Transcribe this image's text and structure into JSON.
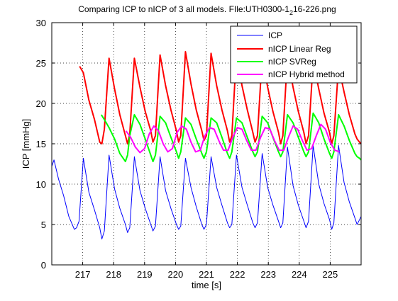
{
  "window": {
    "title_main": "Comparing ICP to nICP of 3 all models. FIle:UTH0300-1",
    "title_sub": "2",
    "title_tail": "16-226.png"
  },
  "chart_data": {
    "type": "line",
    "title": "Comparing ICP to nICP of 3 all models. FIle:UTH0300-1_2 16-226.png",
    "xlabel": "time [s]",
    "ylabel": "ICP [mmHg]",
    "xlim": [
      216.0,
      226.0
    ],
    "ylim": [
      0,
      30
    ],
    "xticks": [
      217,
      218,
      219,
      220,
      221,
      222,
      223,
      224,
      225
    ],
    "yticks": [
      0,
      5,
      10,
      15,
      20,
      25,
      30
    ],
    "grid": true,
    "legend_position": "top-right",
    "beat_period_s": 0.825,
    "series": [
      {
        "name": "ICP",
        "color": "#0000ff",
        "x": [
          216.0,
          216.07,
          216.22,
          216.38,
          216.55,
          216.73,
          216.8,
          216.88,
          217.02,
          217.2,
          217.38,
          217.55,
          217.62,
          217.7,
          217.85,
          218.03,
          218.2,
          218.38,
          218.45,
          218.52,
          218.67,
          218.85,
          219.02,
          219.2,
          219.27,
          219.35,
          219.5,
          219.68,
          219.85,
          220.03,
          220.1,
          220.17,
          220.32,
          220.5,
          220.67,
          220.85,
          220.92,
          221.0,
          221.15,
          221.33,
          221.5,
          221.68,
          221.75,
          221.82,
          221.97,
          222.15,
          222.32,
          222.5,
          222.57,
          222.65,
          222.8,
          222.98,
          223.15,
          223.33,
          223.4,
          223.47,
          223.62,
          223.8,
          223.97,
          224.15,
          224.22,
          224.3,
          224.45,
          224.63,
          224.8,
          224.98,
          225.05,
          225.12,
          225.27,
          225.45,
          225.62,
          225.8,
          225.87,
          225.95,
          226.0
        ],
        "y": [
          12.2,
          13.0,
          10.6,
          8.6,
          6.0,
          4.4,
          4.6,
          5.4,
          13.2,
          9.0,
          6.8,
          4.6,
          3.2,
          4.2,
          13.6,
          9.4,
          7.0,
          5.0,
          4.0,
          4.6,
          13.4,
          9.2,
          7.0,
          5.0,
          4.2,
          4.8,
          13.4,
          9.2,
          7.0,
          5.0,
          4.4,
          4.8,
          13.2,
          9.6,
          7.2,
          5.0,
          4.4,
          5.0,
          13.4,
          9.6,
          7.4,
          5.2,
          4.6,
          5.0,
          13.6,
          9.6,
          7.4,
          5.2,
          4.6,
          5.2,
          13.8,
          9.6,
          7.4,
          5.4,
          4.6,
          5.2,
          14.6,
          9.8,
          7.4,
          5.4,
          4.6,
          5.4,
          14.8,
          10.0,
          7.6,
          5.6,
          4.4,
          5.2,
          14.8,
          10.2,
          7.8,
          5.8,
          5.0,
          5.6,
          6.0
        ]
      },
      {
        "name": "nICP Linear Reg",
        "color": "#ff0000",
        "x": [
          216.9,
          217.02,
          217.2,
          217.38,
          217.55,
          217.62,
          217.7,
          217.85,
          218.03,
          218.2,
          218.38,
          218.45,
          218.52,
          218.67,
          218.85,
          219.02,
          219.2,
          219.27,
          219.35,
          219.5,
          219.68,
          219.85,
          220.03,
          220.1,
          220.17,
          220.32,
          220.5,
          220.67,
          220.85,
          220.92,
          221.0,
          221.15,
          221.33,
          221.5,
          221.68,
          221.75,
          221.82,
          221.97,
          222.15,
          222.32,
          222.5,
          222.57,
          222.65,
          222.8,
          222.98,
          223.15,
          223.33,
          223.4,
          223.47,
          223.62,
          223.8,
          223.97,
          224.15,
          224.22,
          224.3,
          224.45,
          224.63,
          224.8,
          224.98,
          225.05,
          225.12,
          225.27,
          225.45,
          225.62,
          225.8,
          225.87,
          225.95,
          226.0
        ],
        "y": [
          24.6,
          23.8,
          20.4,
          18.0,
          15.2,
          15.0,
          16.8,
          25.6,
          21.8,
          18.6,
          16.0,
          15.0,
          16.2,
          25.6,
          22.0,
          19.0,
          16.6,
          15.2,
          16.0,
          26.0,
          22.2,
          19.2,
          16.6,
          15.2,
          16.0,
          26.4,
          22.4,
          19.2,
          16.6,
          15.4,
          16.0,
          26.2,
          22.2,
          19.2,
          16.6,
          15.2,
          16.0,
          26.2,
          22.2,
          19.2,
          16.4,
          15.2,
          16.0,
          25.8,
          22.0,
          19.0,
          16.4,
          15.0,
          16.0,
          25.8,
          22.0,
          19.0,
          16.4,
          15.0,
          16.0,
          25.2,
          21.8,
          18.8,
          16.4,
          15.0,
          16.0,
          24.6,
          21.4,
          18.6,
          16.2,
          15.6,
          15.2,
          15.0
        ]
      },
      {
        "name": "nICP SVReg",
        "color": "#00ff00",
        "x": [
          217.6,
          217.7,
          217.85,
          218.03,
          218.2,
          218.38,
          218.45,
          218.52,
          218.67,
          218.85,
          219.02,
          219.2,
          219.27,
          219.35,
          219.5,
          219.68,
          219.85,
          220.03,
          220.1,
          220.17,
          220.32,
          220.5,
          220.67,
          220.85,
          220.92,
          221.0,
          221.15,
          221.33,
          221.5,
          221.68,
          221.75,
          221.82,
          221.97,
          222.15,
          222.32,
          222.5,
          222.57,
          222.65,
          222.8,
          222.98,
          223.15,
          223.33,
          223.4,
          223.47,
          223.62,
          223.8,
          223.97,
          224.15,
          224.22,
          224.3,
          224.45,
          224.63,
          224.8,
          224.98,
          225.05,
          225.12,
          225.27,
          225.45,
          225.62,
          225.8,
          225.87,
          225.95,
          226.0
        ],
        "y": [
          18.6,
          18.0,
          17.0,
          15.6,
          13.8,
          12.8,
          13.6,
          16.0,
          18.6,
          17.4,
          15.6,
          13.6,
          12.8,
          13.6,
          18.4,
          17.6,
          15.8,
          14.0,
          13.2,
          14.0,
          18.2,
          17.4,
          15.6,
          13.8,
          13.2,
          14.0,
          18.2,
          17.6,
          15.8,
          13.8,
          13.2,
          14.0,
          18.2,
          17.6,
          15.8,
          14.0,
          13.4,
          14.0,
          18.4,
          17.6,
          15.8,
          14.0,
          13.4,
          14.0,
          18.6,
          17.6,
          15.8,
          14.0,
          13.4,
          14.0,
          18.8,
          17.6,
          15.6,
          13.8,
          13.2,
          14.0,
          18.6,
          17.2,
          15.4,
          13.8,
          13.4,
          13.2,
          13.0
        ]
      },
      {
        "name": "nICP Hybrid method",
        "color": "#ff00ff",
        "x": [
          218.4,
          218.55,
          218.7,
          218.85,
          219.0,
          219.15,
          219.3,
          219.45,
          219.6,
          219.75,
          219.9,
          220.05,
          220.2,
          220.35,
          220.5,
          220.65,
          220.8,
          220.95,
          221.1,
          221.25,
          221.4,
          221.55,
          221.7,
          221.85,
          222.0,
          222.15,
          222.3,
          222.45,
          222.6,
          222.75,
          222.9,
          223.05,
          223.2,
          223.35,
          223.5,
          223.65,
          223.8,
          223.95,
          224.1,
          224.25,
          224.4,
          224.55,
          224.7,
          224.85,
          225.0,
          225.15,
          225.3
        ],
        "y": [
          16.6,
          15.8,
          14.6,
          13.9,
          14.4,
          16.2,
          17.2,
          16.6,
          15.0,
          14.0,
          14.4,
          16.4,
          17.2,
          16.8,
          15.2,
          14.0,
          14.2,
          16.0,
          17.0,
          16.8,
          15.4,
          14.2,
          14.2,
          15.8,
          17.0,
          16.8,
          15.4,
          14.2,
          14.2,
          15.8,
          17.0,
          16.8,
          15.4,
          14.2,
          14.2,
          15.8,
          17.2,
          16.8,
          15.4,
          14.2,
          14.4,
          16.0,
          17.4,
          16.8,
          15.2,
          14.2,
          14.0
        ]
      }
    ]
  }
}
